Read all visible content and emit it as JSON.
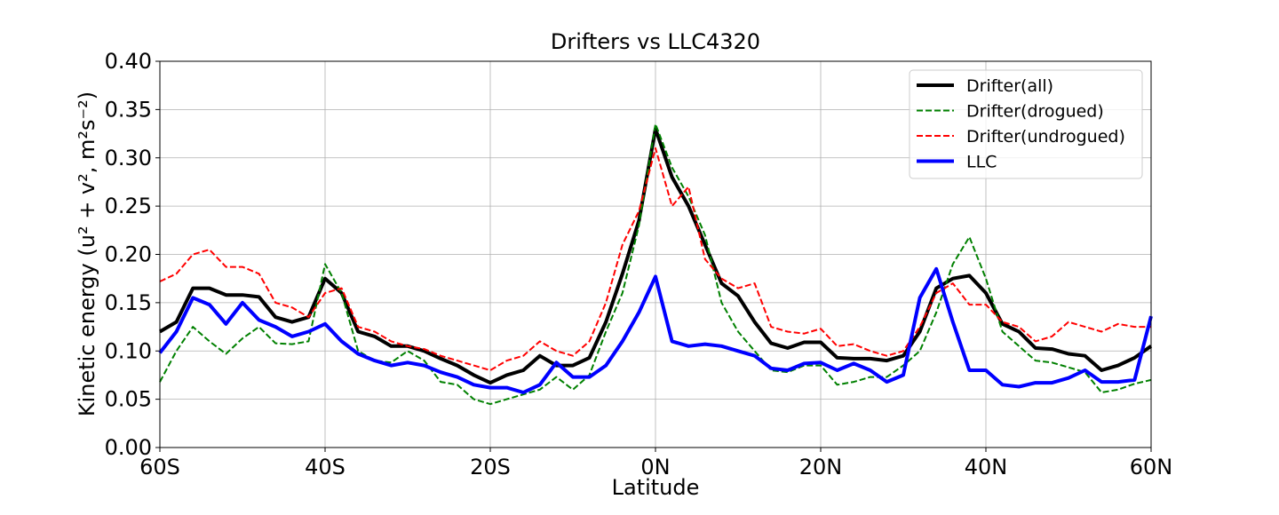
{
  "chart_data": {
    "type": "line",
    "title": "Drifters vs LLC4320",
    "x_label": "Latitude",
    "y_label": "Kinetic energy (u² + v², m²s⁻²)",
    "x": [
      -60,
      -58,
      -56,
      -54,
      -52,
      -50,
      -48,
      -46,
      -44,
      -42,
      -40,
      -38,
      -36,
      -34,
      -32,
      -30,
      -28,
      -26,
      -24,
      -22,
      -20,
      -18,
      -16,
      -14,
      -12,
      -10,
      -8,
      -6,
      -4,
      -2,
      0,
      2,
      4,
      6,
      8,
      10,
      12,
      14,
      16,
      18,
      20,
      22,
      24,
      26,
      28,
      30,
      32,
      34,
      36,
      38,
      40,
      42,
      44,
      46,
      48,
      50,
      52,
      54,
      56,
      58,
      60
    ],
    "series": [
      {
        "name": "Drifter(all)",
        "color": "#000000",
        "dash": false,
        "width": 4,
        "values": [
          0.12,
          0.13,
          0.165,
          0.165,
          0.158,
          0.158,
          0.156,
          0.135,
          0.13,
          0.135,
          0.175,
          0.16,
          0.12,
          0.115,
          0.105,
          0.105,
          0.1,
          0.092,
          0.085,
          0.075,
          0.067,
          0.075,
          0.08,
          0.095,
          0.085,
          0.085,
          0.093,
          0.13,
          0.18,
          0.235,
          0.33,
          0.28,
          0.25,
          0.21,
          0.17,
          0.157,
          0.13,
          0.108,
          0.103,
          0.109,
          0.109,
          0.093,
          0.092,
          0.092,
          0.09,
          0.095,
          0.12,
          0.165,
          0.175,
          0.178,
          0.16,
          0.128,
          0.12,
          0.103,
          0.102,
          0.097,
          0.095,
          0.08,
          0.085,
          0.093,
          0.105
        ]
      },
      {
        "name": "Drifter(drogued)",
        "color": "#008000",
        "dash": true,
        "width": 2,
        "values": [
          0.068,
          0.1,
          0.125,
          0.11,
          0.097,
          0.113,
          0.125,
          0.108,
          0.107,
          0.11,
          0.19,
          0.16,
          0.1,
          0.09,
          0.088,
          0.1,
          0.09,
          0.068,
          0.065,
          0.05,
          0.045,
          0.05,
          0.055,
          0.06,
          0.073,
          0.06,
          0.075,
          0.12,
          0.16,
          0.23,
          0.335,
          0.29,
          0.26,
          0.22,
          0.15,
          0.12,
          0.1,
          0.08,
          0.078,
          0.085,
          0.085,
          0.065,
          0.068,
          0.073,
          0.073,
          0.085,
          0.1,
          0.14,
          0.19,
          0.218,
          0.175,
          0.12,
          0.105,
          0.09,
          0.088,
          0.083,
          0.078,
          0.057,
          0.06,
          0.066,
          0.07
        ]
      },
      {
        "name": "Drifter(undrogued)",
        "color": "#ff0000",
        "dash": true,
        "width": 2,
        "values": [
          0.172,
          0.18,
          0.2,
          0.205,
          0.187,
          0.187,
          0.18,
          0.15,
          0.145,
          0.135,
          0.16,
          0.165,
          0.125,
          0.12,
          0.11,
          0.105,
          0.102,
          0.095,
          0.09,
          0.085,
          0.08,
          0.09,
          0.095,
          0.11,
          0.1,
          0.095,
          0.11,
          0.15,
          0.21,
          0.245,
          0.31,
          0.25,
          0.27,
          0.195,
          0.175,
          0.165,
          0.17,
          0.125,
          0.12,
          0.118,
          0.123,
          0.105,
          0.107,
          0.1,
          0.095,
          0.1,
          0.125,
          0.16,
          0.17,
          0.148,
          0.148,
          0.13,
          0.125,
          0.11,
          0.115,
          0.13,
          0.125,
          0.12,
          0.128,
          0.125,
          0.125
        ]
      },
      {
        "name": "LLC",
        "color": "#0000ff",
        "dash": false,
        "width": 4,
        "values": [
          0.098,
          0.12,
          0.155,
          0.148,
          0.128,
          0.15,
          0.132,
          0.125,
          0.115,
          0.12,
          0.128,
          0.11,
          0.097,
          0.09,
          0.085,
          0.088,
          0.085,
          0.078,
          0.073,
          0.065,
          0.062,
          0.062,
          0.057,
          0.065,
          0.088,
          0.073,
          0.073,
          0.085,
          0.11,
          0.14,
          0.177,
          0.11,
          0.105,
          0.107,
          0.105,
          0.1,
          0.095,
          0.082,
          0.08,
          0.087,
          0.088,
          0.08,
          0.087,
          0.08,
          0.068,
          0.075,
          0.155,
          0.185,
          0.13,
          0.08,
          0.08,
          0.065,
          0.063,
          0.067,
          0.067,
          0.072,
          0.08,
          0.068,
          0.068,
          0.07,
          0.136
        ]
      }
    ],
    "xlim": [
      -60,
      60
    ],
    "xticks": [
      {
        "value": -60,
        "label": "60S"
      },
      {
        "value": -40,
        "label": "40S"
      },
      {
        "value": -20,
        "label": "20S"
      },
      {
        "value": 0,
        "label": "0N"
      },
      {
        "value": 20,
        "label": "20N"
      },
      {
        "value": 40,
        "label": "40N"
      },
      {
        "value": 60,
        "label": "60N"
      }
    ],
    "ylim": [
      0,
      0.4
    ],
    "yticks": [
      {
        "value": 0,
        "label": "0.00"
      },
      {
        "value": 0.05,
        "label": "0.05"
      },
      {
        "value": 0.1,
        "label": "0.10"
      },
      {
        "value": 0.15,
        "label": "0.15"
      },
      {
        "value": 0.2,
        "label": "0.20"
      },
      {
        "value": 0.25,
        "label": "0.25"
      },
      {
        "value": 0.3,
        "label": "0.30"
      },
      {
        "value": 0.35,
        "label": "0.35"
      },
      {
        "value": 0.4,
        "label": "0.40"
      }
    ],
    "grid": true,
    "legend": "upper right"
  }
}
